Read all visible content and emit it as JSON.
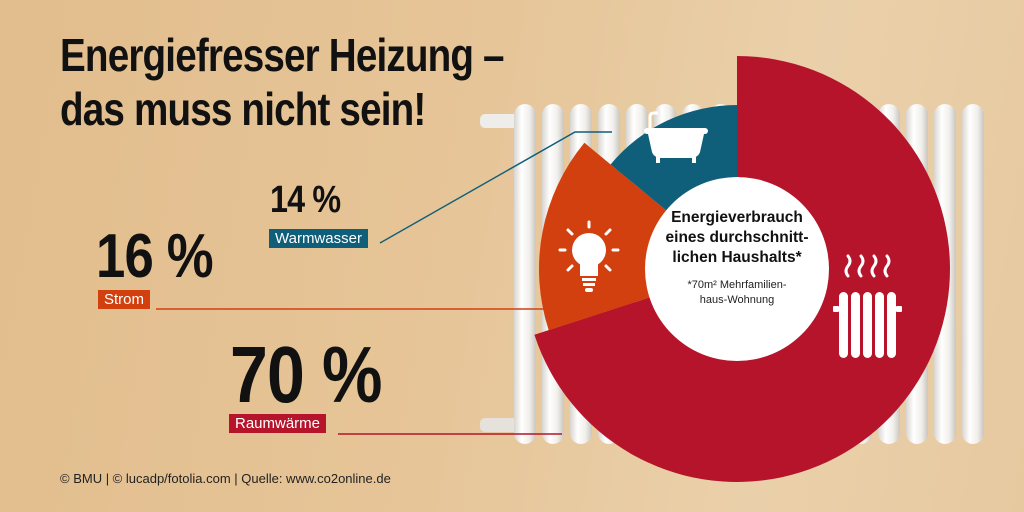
{
  "title_line1": "Energiefresser Heizung –",
  "title_line2": "das muss nicht sein!",
  "chart_data": {
    "type": "pie",
    "title": "Energieverbrauch eines durchschnitt-lichen Haushalts*",
    "center_line1": "Energieverbrauch",
    "center_line2": "eines durchschnitt-",
    "center_line3": "lichen Haushalts*",
    "note_line1": "*70m² Mehrfamilien-",
    "note_line2": "haus-Wohnung",
    "slices": [
      {
        "label": "Raumwärme",
        "value": 70,
        "value_label": "70 %",
        "color": "#b5142b",
        "icon": "radiator-icon"
      },
      {
        "label": "Strom",
        "value": 16,
        "value_label": "16 %",
        "color": "#d2400f",
        "icon": "lightbulb-icon"
      },
      {
        "label": "Warmwasser",
        "value": 14,
        "value_label": "14 %",
        "color": "#0f5f7a",
        "icon": "bathtub-icon"
      }
    ]
  },
  "credit": "© BMU | © lucadp/fotolia.com | Quelle: www.co2online.de"
}
